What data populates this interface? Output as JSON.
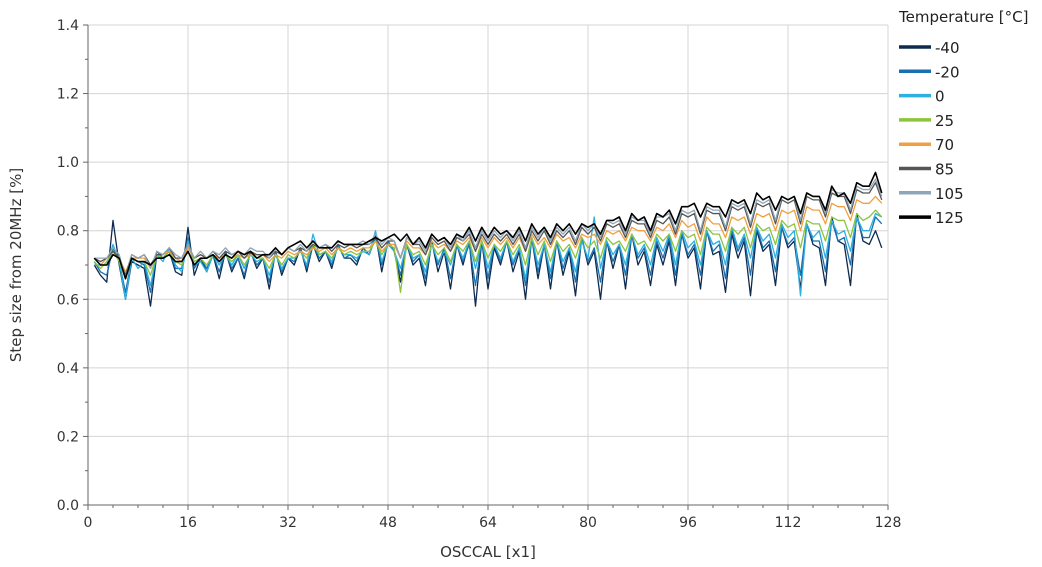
{
  "chart_data": {
    "type": "line",
    "xlabel": "OSCCAL [x1]",
    "ylabel": "Step size from 20MHz [%]",
    "xlim": [
      0,
      128
    ],
    "ylim": [
      0.0,
      1.4
    ],
    "xticks": [
      0,
      16,
      32,
      48,
      64,
      80,
      96,
      112,
      128
    ],
    "yticks": [
      0.0,
      0.2,
      0.4,
      0.6,
      0.8,
      1.0,
      1.2,
      1.4
    ],
    "ytick_labels": [
      "0.0",
      "0.2",
      "0.4",
      "0.6",
      "0.8",
      "1.0",
      "1.2",
      "1.4"
    ],
    "grid": true,
    "legend": {
      "title": "Temperature [°C]",
      "position": "top-right"
    },
    "series_meta": [
      {
        "name": "-40",
        "color": "#0d2a4f"
      },
      {
        "name": "-20",
        "color": "#1a6fb0"
      },
      {
        "name": "0",
        "color": "#2bb0e0"
      },
      {
        "name": "25",
        "color": "#8cc43c"
      },
      {
        "name": "70",
        "color": "#f0a040"
      },
      {
        "name": "85",
        "color": "#555555"
      },
      {
        "name": "105",
        "color": "#8ea6b8"
      },
      {
        "name": "125",
        "color": "#000000"
      }
    ],
    "x": [
      1,
      2,
      3,
      4,
      5,
      6,
      7,
      8,
      9,
      10,
      11,
      12,
      13,
      14,
      15,
      16,
      17,
      18,
      19,
      20,
      21,
      22,
      23,
      24,
      25,
      26,
      27,
      28,
      29,
      30,
      31,
      32,
      33,
      34,
      35,
      36,
      37,
      38,
      39,
      40,
      41,
      42,
      43,
      44,
      45,
      46,
      47,
      48,
      49,
      50,
      51,
      52,
      53,
      54,
      55,
      56,
      57,
      58,
      59,
      60,
      61,
      62,
      63,
      64,
      65,
      66,
      67,
      68,
      69,
      70,
      71,
      72,
      73,
      74,
      75,
      76,
      77,
      78,
      79,
      80,
      81,
      82,
      83,
      84,
      85,
      86,
      87,
      88,
      89,
      90,
      91,
      92,
      93,
      94,
      95,
      96,
      97,
      98,
      99,
      100,
      101,
      102,
      103,
      104,
      105,
      106,
      107,
      108,
      109,
      110,
      111,
      112,
      113,
      114,
      115,
      116,
      117,
      118,
      119,
      120,
      121,
      122,
      123,
      124,
      125,
      126,
      127
    ],
    "series": [
      {
        "name": "-40",
        "values": [
          0.7,
          0.67,
          0.65,
          0.83,
          0.7,
          0.6,
          0.71,
          0.7,
          0.69,
          0.58,
          0.73,
          0.72,
          0.74,
          0.68,
          0.67,
          0.81,
          0.67,
          0.72,
          0.68,
          0.73,
          0.66,
          0.74,
          0.68,
          0.72,
          0.66,
          0.74,
          0.69,
          0.72,
          0.63,
          0.74,
          0.67,
          0.72,
          0.7,
          0.75,
          0.68,
          0.76,
          0.71,
          0.74,
          0.69,
          0.76,
          0.72,
          0.72,
          0.7,
          0.75,
          0.73,
          0.79,
          0.68,
          0.77,
          0.74,
          0.65,
          0.76,
          0.7,
          0.72,
          0.64,
          0.77,
          0.68,
          0.74,
          0.63,
          0.76,
          0.7,
          0.77,
          0.58,
          0.77,
          0.63,
          0.75,
          0.7,
          0.77,
          0.68,
          0.74,
          0.6,
          0.78,
          0.66,
          0.76,
          0.63,
          0.77,
          0.67,
          0.74,
          0.61,
          0.78,
          0.7,
          0.74,
          0.6,
          0.77,
          0.69,
          0.76,
          0.63,
          0.79,
          0.7,
          0.74,
          0.64,
          0.76,
          0.7,
          0.77,
          0.64,
          0.79,
          0.72,
          0.75,
          0.63,
          0.8,
          0.73,
          0.74,
          0.62,
          0.79,
          0.72,
          0.77,
          0.61,
          0.8,
          0.74,
          0.76,
          0.64,
          0.81,
          0.75,
          0.77,
          0.63,
          0.82,
          0.76,
          0.75,
          0.64,
          0.84,
          0.77,
          0.76,
          0.64,
          0.85,
          0.77,
          0.76,
          0.8,
          0.75
        ]
      },
      {
        "name": "-20",
        "values": [
          0.71,
          0.68,
          0.67,
          0.75,
          0.71,
          0.62,
          0.72,
          0.71,
          0.7,
          0.62,
          0.74,
          0.72,
          0.74,
          0.69,
          0.69,
          0.78,
          0.69,
          0.72,
          0.69,
          0.73,
          0.68,
          0.74,
          0.69,
          0.72,
          0.67,
          0.74,
          0.7,
          0.72,
          0.65,
          0.74,
          0.68,
          0.72,
          0.71,
          0.75,
          0.69,
          0.76,
          0.72,
          0.74,
          0.7,
          0.76,
          0.72,
          0.73,
          0.71,
          0.75,
          0.73,
          0.78,
          0.7,
          0.77,
          0.74,
          0.67,
          0.76,
          0.71,
          0.73,
          0.66,
          0.77,
          0.7,
          0.75,
          0.66,
          0.76,
          0.71,
          0.76,
          0.64,
          0.77,
          0.66,
          0.76,
          0.71,
          0.77,
          0.7,
          0.75,
          0.64,
          0.78,
          0.68,
          0.76,
          0.66,
          0.77,
          0.69,
          0.75,
          0.65,
          0.78,
          0.71,
          0.75,
          0.65,
          0.77,
          0.71,
          0.76,
          0.67,
          0.79,
          0.72,
          0.75,
          0.67,
          0.77,
          0.72,
          0.78,
          0.67,
          0.79,
          0.73,
          0.76,
          0.67,
          0.8,
          0.74,
          0.76,
          0.66,
          0.8,
          0.74,
          0.78,
          0.67,
          0.81,
          0.75,
          0.77,
          0.68,
          0.81,
          0.76,
          0.78,
          0.67,
          0.82,
          0.77,
          0.77,
          0.68,
          0.83,
          0.77,
          0.78,
          0.7,
          0.84,
          0.78,
          0.78,
          0.84,
          0.82
        ]
      },
      {
        "name": "0",
        "values": [
          0.7,
          0.7,
          0.7,
          0.76,
          0.71,
          0.6,
          0.72,
          0.69,
          0.71,
          0.64,
          0.73,
          0.71,
          0.75,
          0.7,
          0.68,
          0.77,
          0.7,
          0.71,
          0.68,
          0.73,
          0.7,
          0.73,
          0.7,
          0.73,
          0.69,
          0.73,
          0.71,
          0.72,
          0.67,
          0.73,
          0.69,
          0.72,
          0.72,
          0.74,
          0.7,
          0.79,
          0.73,
          0.74,
          0.71,
          0.75,
          0.73,
          0.73,
          0.72,
          0.74,
          0.73,
          0.8,
          0.71,
          0.76,
          0.74,
          0.69,
          0.76,
          0.72,
          0.73,
          0.68,
          0.76,
          0.71,
          0.74,
          0.7,
          0.76,
          0.72,
          0.77,
          0.69,
          0.77,
          0.69,
          0.76,
          0.72,
          0.77,
          0.71,
          0.75,
          0.66,
          0.78,
          0.7,
          0.76,
          0.68,
          0.77,
          0.71,
          0.75,
          0.68,
          0.77,
          0.72,
          0.84,
          0.69,
          0.77,
          0.73,
          0.76,
          0.7,
          0.79,
          0.73,
          0.76,
          0.7,
          0.78,
          0.74,
          0.79,
          0.7,
          0.8,
          0.75,
          0.77,
          0.7,
          0.8,
          0.76,
          0.77,
          0.7,
          0.81,
          0.75,
          0.79,
          0.72,
          0.81,
          0.77,
          0.79,
          0.72,
          0.82,
          0.78,
          0.8,
          0.61,
          0.82,
          0.78,
          0.8,
          0.72,
          0.83,
          0.79,
          0.8,
          0.74,
          0.84,
          0.8,
          0.8,
          0.85,
          0.84
        ]
      },
      {
        "name": "25",
        "values": [
          0.71,
          0.69,
          0.71,
          0.74,
          0.71,
          0.66,
          0.72,
          0.71,
          0.71,
          0.67,
          0.73,
          0.72,
          0.74,
          0.71,
          0.7,
          0.76,
          0.71,
          0.72,
          0.7,
          0.73,
          0.71,
          0.73,
          0.71,
          0.73,
          0.7,
          0.73,
          0.72,
          0.72,
          0.69,
          0.73,
          0.7,
          0.73,
          0.72,
          0.74,
          0.72,
          0.76,
          0.73,
          0.74,
          0.72,
          0.75,
          0.73,
          0.74,
          0.73,
          0.74,
          0.74,
          0.77,
          0.73,
          0.76,
          0.75,
          0.62,
          0.76,
          0.73,
          0.74,
          0.7,
          0.76,
          0.73,
          0.75,
          0.71,
          0.76,
          0.74,
          0.77,
          0.71,
          0.77,
          0.72,
          0.76,
          0.74,
          0.77,
          0.73,
          0.76,
          0.7,
          0.78,
          0.73,
          0.77,
          0.71,
          0.77,
          0.74,
          0.76,
          0.72,
          0.78,
          0.75,
          0.77,
          0.72,
          0.78,
          0.76,
          0.77,
          0.74,
          0.79,
          0.76,
          0.77,
          0.74,
          0.79,
          0.77,
          0.79,
          0.74,
          0.8,
          0.78,
          0.79,
          0.73,
          0.81,
          0.79,
          0.79,
          0.74,
          0.81,
          0.79,
          0.81,
          0.75,
          0.82,
          0.8,
          0.81,
          0.76,
          0.83,
          0.81,
          0.82,
          0.75,
          0.83,
          0.82,
          0.82,
          0.77,
          0.84,
          0.83,
          0.83,
          0.78,
          0.85,
          0.83,
          0.84,
          0.86,
          0.84
        ]
      },
      {
        "name": "70",
        "values": [
          0.72,
          0.7,
          0.72,
          0.74,
          0.72,
          0.68,
          0.72,
          0.72,
          0.72,
          0.69,
          0.73,
          0.73,
          0.74,
          0.72,
          0.71,
          0.75,
          0.72,
          0.73,
          0.72,
          0.73,
          0.72,
          0.73,
          0.72,
          0.73,
          0.72,
          0.73,
          0.73,
          0.73,
          0.71,
          0.73,
          0.72,
          0.74,
          0.73,
          0.74,
          0.73,
          0.75,
          0.74,
          0.75,
          0.73,
          0.75,
          0.74,
          0.75,
          0.74,
          0.75,
          0.75,
          0.77,
          0.74,
          0.76,
          0.76,
          0.72,
          0.77,
          0.75,
          0.75,
          0.73,
          0.77,
          0.75,
          0.76,
          0.74,
          0.77,
          0.76,
          0.78,
          0.74,
          0.78,
          0.75,
          0.78,
          0.76,
          0.78,
          0.75,
          0.78,
          0.74,
          0.79,
          0.76,
          0.78,
          0.75,
          0.79,
          0.77,
          0.78,
          0.75,
          0.79,
          0.78,
          0.79,
          0.76,
          0.8,
          0.79,
          0.8,
          0.77,
          0.81,
          0.8,
          0.8,
          0.77,
          0.81,
          0.8,
          0.82,
          0.78,
          0.83,
          0.81,
          0.82,
          0.77,
          0.84,
          0.82,
          0.82,
          0.78,
          0.84,
          0.83,
          0.84,
          0.79,
          0.85,
          0.84,
          0.85,
          0.8,
          0.86,
          0.85,
          0.86,
          0.8,
          0.87,
          0.86,
          0.86,
          0.82,
          0.88,
          0.87,
          0.87,
          0.83,
          0.89,
          0.88,
          0.88,
          0.9,
          0.88
        ]
      },
      {
        "name": "85",
        "values": [
          0.72,
          0.71,
          0.72,
          0.74,
          0.72,
          0.67,
          0.73,
          0.72,
          0.73,
          0.7,
          0.73,
          0.73,
          0.75,
          0.72,
          0.72,
          0.76,
          0.72,
          0.73,
          0.72,
          0.74,
          0.72,
          0.74,
          0.73,
          0.74,
          0.72,
          0.74,
          0.73,
          0.73,
          0.72,
          0.74,
          0.73,
          0.75,
          0.74,
          0.75,
          0.74,
          0.76,
          0.75,
          0.76,
          0.74,
          0.76,
          0.75,
          0.76,
          0.75,
          0.76,
          0.76,
          0.78,
          0.75,
          0.77,
          0.77,
          0.72,
          0.78,
          0.76,
          0.76,
          0.73,
          0.78,
          0.76,
          0.77,
          0.74,
          0.78,
          0.77,
          0.79,
          0.74,
          0.79,
          0.76,
          0.79,
          0.77,
          0.79,
          0.76,
          0.79,
          0.74,
          0.8,
          0.77,
          0.8,
          0.76,
          0.8,
          0.78,
          0.8,
          0.76,
          0.81,
          0.79,
          0.81,
          0.77,
          0.82,
          0.81,
          0.82,
          0.78,
          0.83,
          0.82,
          0.82,
          0.78,
          0.83,
          0.82,
          0.84,
          0.79,
          0.85,
          0.84,
          0.85,
          0.79,
          0.86,
          0.85,
          0.85,
          0.8,
          0.87,
          0.86,
          0.87,
          0.81,
          0.88,
          0.87,
          0.88,
          0.82,
          0.89,
          0.88,
          0.89,
          0.82,
          0.9,
          0.89,
          0.89,
          0.84,
          0.91,
          0.9,
          0.9,
          0.85,
          0.92,
          0.91,
          0.91,
          0.94,
          0.89
        ]
      },
      {
        "name": "105",
        "values": [
          0.72,
          0.72,
          0.72,
          0.75,
          0.73,
          0.66,
          0.73,
          0.72,
          0.73,
          0.69,
          0.74,
          0.73,
          0.75,
          0.73,
          0.72,
          0.76,
          0.72,
          0.74,
          0.72,
          0.74,
          0.73,
          0.75,
          0.73,
          0.74,
          0.73,
          0.75,
          0.74,
          0.74,
          0.72,
          0.75,
          0.73,
          0.75,
          0.74,
          0.76,
          0.74,
          0.77,
          0.75,
          0.76,
          0.75,
          0.77,
          0.76,
          0.76,
          0.76,
          0.77,
          0.76,
          0.79,
          0.76,
          0.78,
          0.77,
          0.72,
          0.78,
          0.76,
          0.77,
          0.74,
          0.79,
          0.77,
          0.78,
          0.75,
          0.79,
          0.77,
          0.8,
          0.75,
          0.8,
          0.77,
          0.8,
          0.78,
          0.8,
          0.77,
          0.8,
          0.75,
          0.81,
          0.78,
          0.81,
          0.77,
          0.81,
          0.79,
          0.81,
          0.77,
          0.82,
          0.8,
          0.82,
          0.78,
          0.83,
          0.82,
          0.83,
          0.79,
          0.84,
          0.83,
          0.83,
          0.79,
          0.84,
          0.84,
          0.85,
          0.8,
          0.86,
          0.85,
          0.86,
          0.8,
          0.87,
          0.86,
          0.86,
          0.81,
          0.88,
          0.87,
          0.88,
          0.82,
          0.89,
          0.88,
          0.89,
          0.83,
          0.9,
          0.89,
          0.9,
          0.83,
          0.91,
          0.9,
          0.9,
          0.85,
          0.92,
          0.91,
          0.91,
          0.86,
          0.93,
          0.92,
          0.92,
          0.95,
          0.9
        ]
      },
      {
        "name": "125",
        "values": [
          0.72,
          0.7,
          0.7,
          0.73,
          0.72,
          0.66,
          0.72,
          0.71,
          0.71,
          0.7,
          0.72,
          0.72,
          0.73,
          0.71,
          0.71,
          0.74,
          0.7,
          0.72,
          0.72,
          0.73,
          0.71,
          0.73,
          0.72,
          0.74,
          0.73,
          0.74,
          0.72,
          0.73,
          0.73,
          0.75,
          0.73,
          0.75,
          0.76,
          0.77,
          0.75,
          0.77,
          0.75,
          0.75,
          0.75,
          0.77,
          0.76,
          0.76,
          0.76,
          0.76,
          0.77,
          0.78,
          0.77,
          0.78,
          0.79,
          0.77,
          0.79,
          0.76,
          0.78,
          0.75,
          0.79,
          0.77,
          0.78,
          0.76,
          0.79,
          0.78,
          0.81,
          0.77,
          0.81,
          0.78,
          0.81,
          0.79,
          0.8,
          0.78,
          0.81,
          0.77,
          0.82,
          0.79,
          0.81,
          0.78,
          0.82,
          0.8,
          0.82,
          0.79,
          0.82,
          0.81,
          0.82,
          0.79,
          0.83,
          0.83,
          0.84,
          0.8,
          0.85,
          0.83,
          0.84,
          0.8,
          0.85,
          0.84,
          0.86,
          0.82,
          0.87,
          0.87,
          0.88,
          0.84,
          0.88,
          0.87,
          0.87,
          0.84,
          0.89,
          0.88,
          0.89,
          0.85,
          0.91,
          0.89,
          0.9,
          0.86,
          0.9,
          0.89,
          0.9,
          0.85,
          0.91,
          0.9,
          0.9,
          0.86,
          0.93,
          0.9,
          0.91,
          0.88,
          0.94,
          0.93,
          0.93,
          0.97,
          0.91
        ]
      }
    ]
  }
}
